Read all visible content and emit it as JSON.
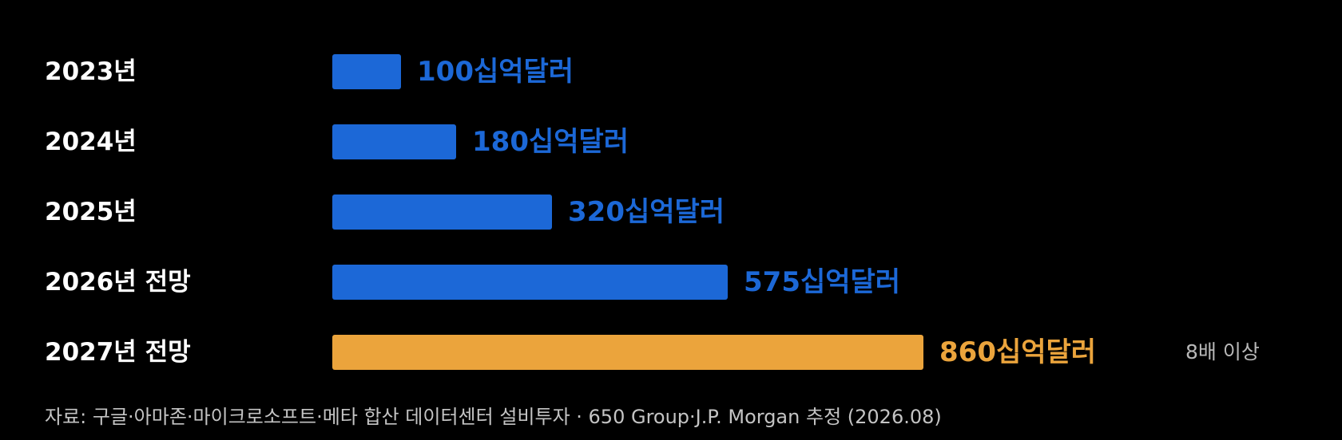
{
  "chart_data": {
    "type": "bar",
    "orientation": "horizontal",
    "categories": [
      "2023년",
      "2024년",
      "2025년",
      "2026년 전망",
      "2027년 전망"
    ],
    "values": [
      100,
      180,
      320,
      575,
      860
    ],
    "value_labels": [
      "100십억달러",
      "180십억달러",
      "320십억달러",
      "575십억달러",
      "860십억달러"
    ],
    "highlight_index": 4,
    "annotation": "8배 이상",
    "grid": false,
    "legend": "none",
    "xlim": [
      0,
      860
    ]
  },
  "colors": {
    "bar": "#1c68d7",
    "highlight": "#eba43c",
    "value_text": "#1c68d7",
    "highlight_text": "#eba43c",
    "background": "#000000"
  },
  "source": "자료: 구글·아마존·마이크로소프트·메타 합산 데이터센터 설비투자 · 650 Group·J.P. Morgan 추정 (2026.08)"
}
